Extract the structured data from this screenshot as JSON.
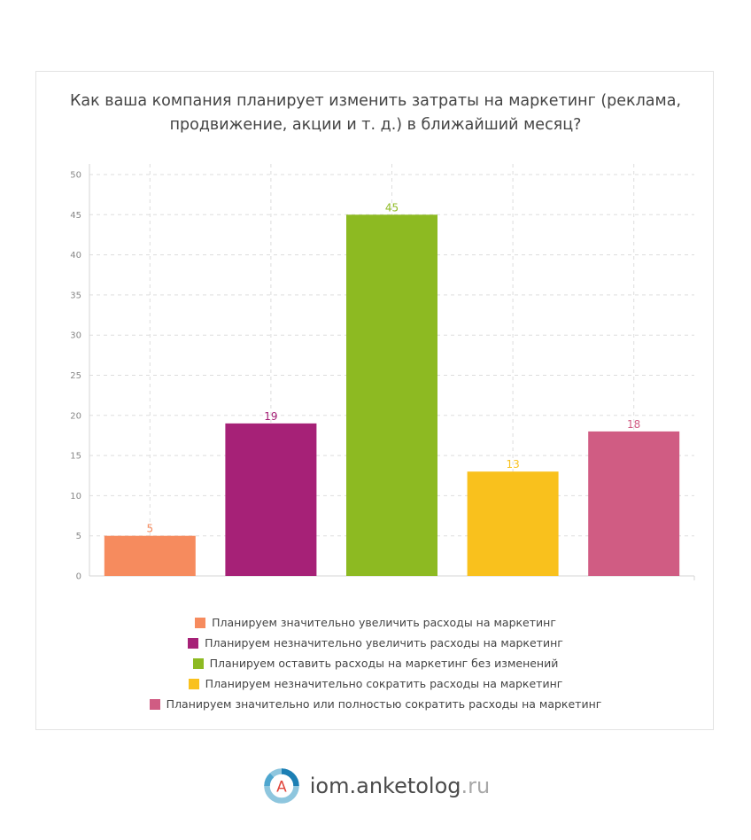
{
  "title_lines": [
    "Как ваша компания планирует изменить затраты на маркетинг (реклама,",
    "продвижение, акции и т. д.) в ближайший месяц?"
  ],
  "chart_data": {
    "type": "bar",
    "title": "Как ваша компания планирует изменить затраты на маркетинг (реклама, продвижение, акции и т. д.) в ближайший месяц?",
    "categories": [
      "Планируем значительно увеличить расходы на маркетинг",
      "Планируем незначительно увеличить расходы на маркетинг",
      "Планируем оставить расходы на маркетинг без изменений",
      "Планируем незначительно сократить расходы на маркетинг",
      "Планируем значительно или полностью сократить расходы на маркетинг"
    ],
    "values": [
      5,
      19,
      45,
      13,
      18
    ],
    "colors": [
      "#f68b5e",
      "#a62177",
      "#8dba22",
      "#f9c11d",
      "#d05c83"
    ],
    "ylim": [
      0,
      50
    ],
    "yticks": [
      0,
      5,
      10,
      15,
      20,
      25,
      30,
      35,
      40,
      45,
      50
    ],
    "grid": true,
    "data_labels": true,
    "legend_position": "bottom"
  },
  "footer": {
    "logo_letter": "A",
    "brand": "iom.anketolog",
    "tld": ".ru"
  }
}
